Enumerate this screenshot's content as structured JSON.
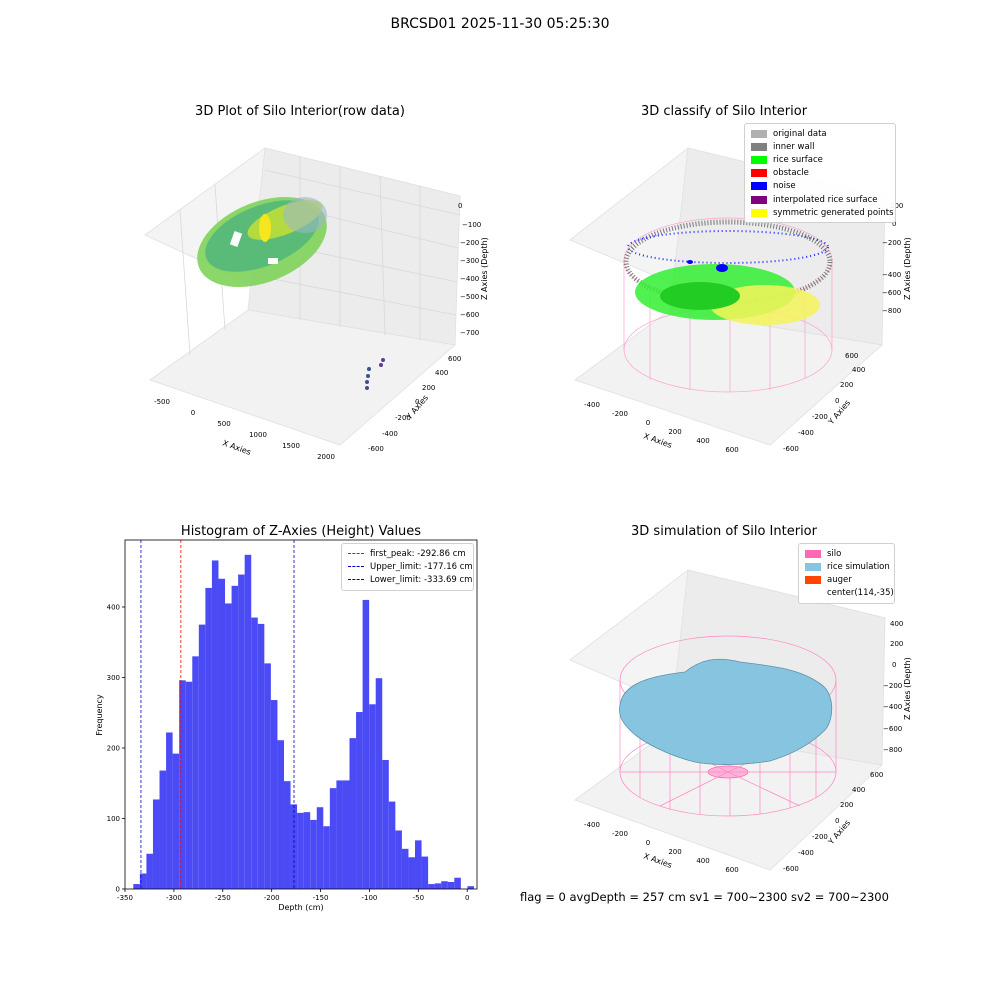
{
  "suptitle": "BRCSD01 2025-11-30 05:25:30",
  "footer": "flag = 0     avgDepth = 257 cm  sv1 = 700~2300  sv2 = 700~2300",
  "colors": {
    "hist_bar": "#4b4bf5",
    "peak_line": "#ff0000",
    "limit_line": "#0000cc",
    "silo": "#ff69b4",
    "rice_sim": "#87c4e0",
    "auger": "#ff4500"
  },
  "chart_data": [
    {
      "type": "scatter3d",
      "title": "3D Plot of Silo Interior(row data)",
      "xlabel": "X Axies",
      "ylabel": "Y Axies",
      "zlabel": "Z Axies (Depth)",
      "x_ticks": [
        "-500",
        "0",
        "500",
        "1000",
        "1500",
        "2000"
      ],
      "y_ticks": [
        "-600",
        "-400",
        "-200",
        "0",
        "200",
        "400",
        "600"
      ],
      "z_ticks": [
        "0",
        "−100",
        "−200",
        "−300",
        "−400",
        "−500",
        "−600",
        "−700"
      ]
    },
    {
      "type": "scatter3d",
      "title": "3D classify of Silo Interior",
      "xlabel": "X Axies",
      "ylabel": "Y Axies",
      "zlabel": "Z Axies (Depth)",
      "x_ticks": [
        "-400",
        "-200",
        "0",
        "200",
        "400",
        "600"
      ],
      "y_ticks": [
        "-600",
        "-400",
        "-200",
        "0",
        "200",
        "400",
        "600"
      ],
      "z_ticks": [
        "200",
        "0",
        "−200",
        "−400",
        "−600",
        "−800"
      ],
      "legend": [
        {
          "label": "original data",
          "color": "#b0b0b0"
        },
        {
          "label": "inner wall",
          "color": "#808080"
        },
        {
          "label": "rice surface",
          "color": "#00ff00"
        },
        {
          "label": "obstacle",
          "color": "#ff0000"
        },
        {
          "label": "noise",
          "color": "#0000ff"
        },
        {
          "label": "interpolated rice surface",
          "color": "#800080"
        },
        {
          "label": "symmetric generated points",
          "color": "#ffff00"
        }
      ]
    },
    {
      "type": "bar",
      "title": "Histogram of Z-Axies (Height) Values",
      "xlabel": "Depth (cm)",
      "ylabel": "Frequency",
      "xlim": [
        -350,
        10
      ],
      "ylim": [
        0,
        495
      ],
      "x_ticks": [
        -350,
        -300,
        -250,
        -200,
        -150,
        -100,
        -50,
        0
      ],
      "y_ticks": [
        0,
        100,
        200,
        300,
        400
      ],
      "bin_width": 6.7,
      "bin_start": -341.5,
      "values": [
        7,
        22,
        50,
        127,
        168,
        222,
        192,
        296,
        294,
        330,
        375,
        427,
        466,
        440,
        405,
        430,
        446,
        474,
        385,
        376,
        320,
        268,
        211,
        153,
        120,
        108,
        109,
        98,
        116,
        89,
        143,
        154,
        154,
        214,
        251,
        410,
        262,
        299,
        183,
        124,
        83,
        57,
        45,
        69,
        46,
        7,
        8,
        11,
        10,
        16,
        0,
        4
      ],
      "vlines": [
        {
          "label": "first_peak: -292.86 cm",
          "x": -292.86,
          "kind": "peak"
        },
        {
          "label": "Upper_limit: -177.16 cm",
          "x": -177.16,
          "kind": "limit"
        },
        {
          "label": "Lower_limit: -333.69 cm",
          "x": -333.69,
          "kind": "limit"
        }
      ]
    },
    {
      "type": "surface3d",
      "title": "3D simulation of Silo Interior",
      "xlabel": "X Axies",
      "ylabel": "Y Axies",
      "zlabel": "Z Axies (Depth)",
      "x_ticks": [
        "-400",
        "-200",
        "0",
        "200",
        "400",
        "600"
      ],
      "y_ticks": [
        "-600",
        "-400",
        "-200",
        "0",
        "200",
        "400",
        "600"
      ],
      "z_ticks": [
        "400",
        "200",
        "0",
        "−200",
        "−400",
        "−600",
        "−800"
      ],
      "legend": [
        {
          "label": "silo",
          "color": "#ff69b4"
        },
        {
          "label": "rice simulation",
          "color": "#87c4e0"
        },
        {
          "label": "auger",
          "color": "#ff4500"
        },
        {
          "label": "center(114,-35)",
          "color": ""
        }
      ]
    }
  ]
}
